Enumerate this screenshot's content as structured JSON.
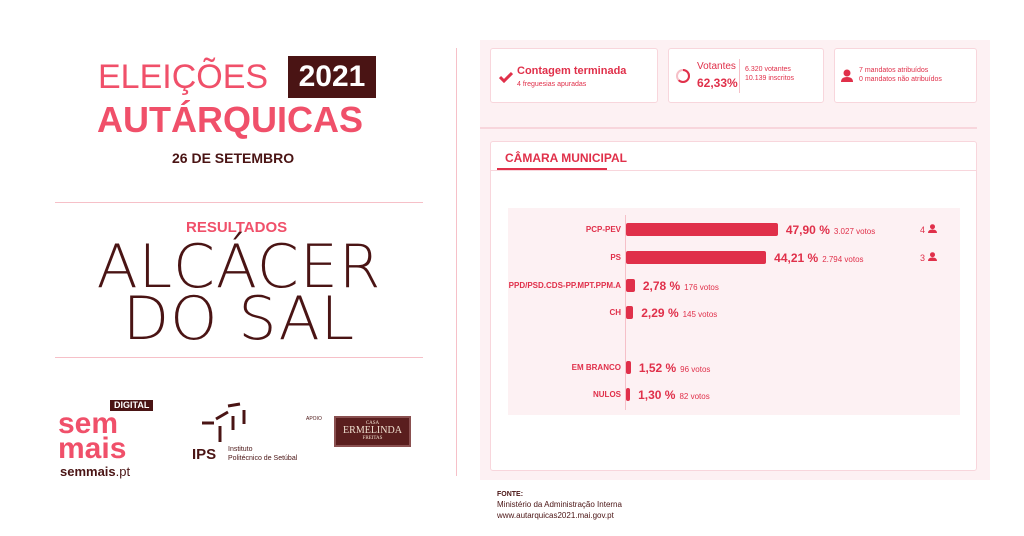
{
  "header": {
    "title1": "ELEIÇÕES",
    "year": "2021",
    "title2": "AUTÁRQUICAS",
    "date": "26 DE SETEMBRO"
  },
  "results": {
    "label": "RESULTADOS",
    "city_line1": "ALCÁCER",
    "city_line2": "DO SAL"
  },
  "logos": {
    "semmais_tag": "DIGITAL",
    "semmais1": "sem",
    "semmais2": "mais",
    "semmais_url": "semmais",
    "semmais_tld": ".pt",
    "ips": "IPS",
    "ips_name1": "Instituto",
    "ips_name2": "Politécnico de Setúbal",
    "apoio": "APOIO",
    "casa1": "CASA",
    "casa2": "ERMELINDA",
    "casa3": "FREITAS"
  },
  "status": {
    "title": "Contagem terminada",
    "sub": "4 freguesias apuradas",
    "votantes_label": "Votantes",
    "votantes_pct": "62,33%",
    "votantes": "6.320 votantes",
    "inscritos": "10.139 inscritos",
    "mandatos": "7 mandatos atribuídos",
    "nao_atribuidos": "0 mandatos não atribuídos",
    "turnout": 62.33
  },
  "section": {
    "title": "CÂMARA MUNICIPAL"
  },
  "colors": {
    "accent": "#e0304a",
    "dark": "#4a1414",
    "pink": "#f0506a"
  },
  "chart_data": {
    "type": "bar",
    "orientation": "horizontal",
    "categories": [
      "PCP-PEV",
      "PS",
      "PPD/PSD.CDS-PP.MPT.PPM.A",
      "CH",
      "EM BRANCO",
      "NULOS"
    ],
    "values": [
      47.9,
      44.21,
      2.78,
      2.29,
      1.52,
      1.3
    ],
    "pct_labels": [
      "47,90 %",
      "44,21 %",
      "2,78 %",
      "2,29 %",
      "1,52 %",
      "1,30 %"
    ],
    "votes_labels": [
      "3.027 votos",
      "2.794 votos",
      "176 votos",
      "145 votos",
      "96 votos",
      "82 votos"
    ],
    "seats": [
      "4",
      "3",
      null,
      null,
      null,
      null
    ]
  },
  "footer": {
    "label": "FONTE:",
    "source": "Ministério da Administração Interna",
    "url": "www.autarquicas2021.mai.gov.pt"
  }
}
